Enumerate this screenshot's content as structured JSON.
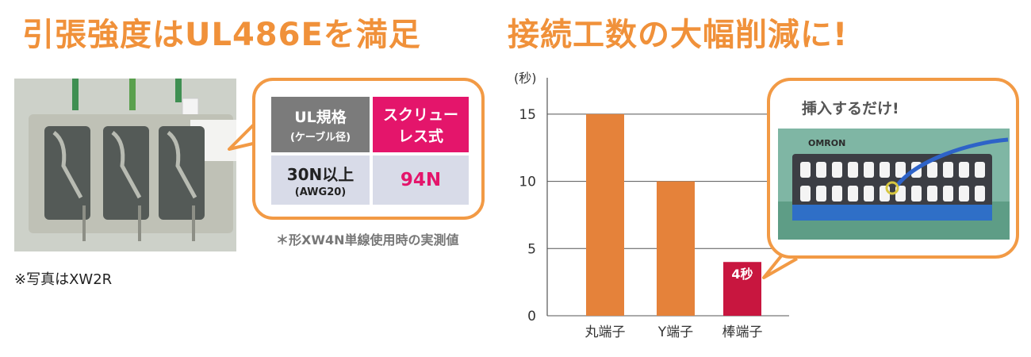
{
  "left": {
    "heading": "引張強度はUL486Eを満足",
    "photo_caption": "※写真はXW2R",
    "table": {
      "header_left_line1": "UL規格",
      "header_left_line2": "(ケーブル径)",
      "header_right_line1": "スクリュー",
      "header_right_line2": "レス式",
      "value_left_line1": "30N以上",
      "value_left_line2": "(AWG20)",
      "value_right": "94N"
    },
    "footnote": "＊形XW4N単線使用時の実測値"
  },
  "right": {
    "heading": "接続工数の大幅削減に!",
    "callout_title": "挿入するだけ!",
    "device_brand": "OMRON"
  },
  "colors": {
    "heading": "#f0913a",
    "bar_orange": "#e5823a",
    "bar_red": "#c8163f",
    "table_gray": "#7b7b7b",
    "table_pink": "#e4156b",
    "table_light": "#d8dbe8"
  },
  "chart_data": {
    "type": "bar",
    "ylabel": "(秒)",
    "categories": [
      "丸端子",
      "Y端子",
      "棒端子"
    ],
    "values": [
      15,
      10,
      4
    ],
    "yticks": [
      0,
      5,
      10,
      15
    ],
    "ylim": [
      0,
      17
    ],
    "grid": true,
    "data_labels": [
      "",
      "",
      "4秒"
    ]
  }
}
